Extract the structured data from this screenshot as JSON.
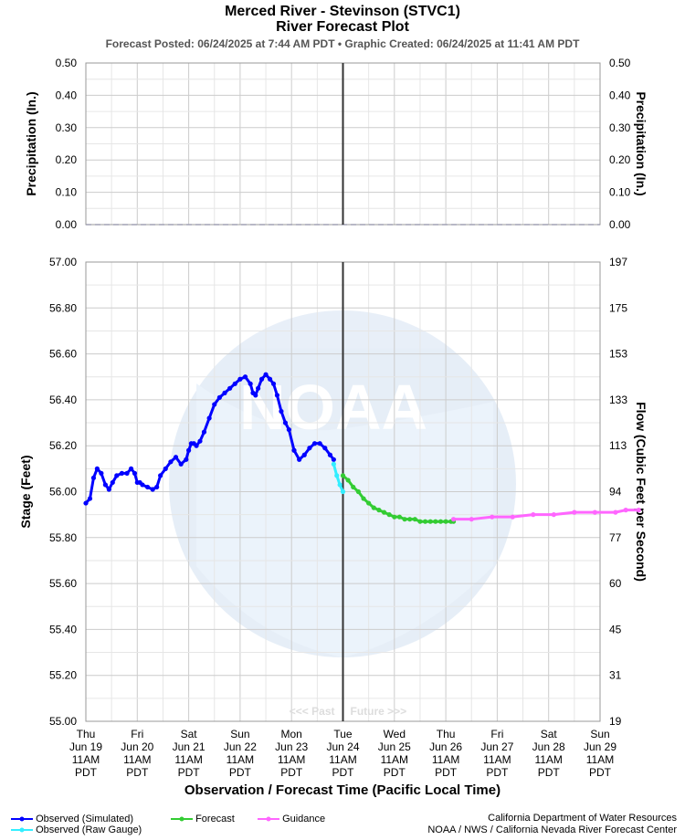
{
  "title": "Merced River - Stevinson (STVC1)",
  "subtitle": "River Forecast Plot",
  "posted": "Forecast Posted: 06/24/2025 at 7:44 AM PDT  •  Graphic Created: 06/24/2025 at 11:41 AM PDT",
  "x_axis_label": "Observation / Forecast Time (Pacific Local Time)",
  "past_label": "<<< Past",
  "future_label": "Future >>>",
  "credits": {
    "line1": "California Department of Water Resources",
    "line2": "NOAA / NWS / California Nevada River Forecast Center"
  },
  "legend": [
    {
      "label": "Observed (Simulated)",
      "color": "#0000ff"
    },
    {
      "label": "Observed (Raw Gauge)",
      "color": "#33eeff"
    },
    {
      "label": "Forecast",
      "color": "#33cc33"
    },
    {
      "label": "Guidance",
      "color": "#ff66ff"
    }
  ],
  "colors": {
    "observed": "#0000ff",
    "raw": "#33eeff",
    "forecast": "#33cc33",
    "guidance": "#ff66ff",
    "now_line": "#333333"
  },
  "chart_data": [
    {
      "type": "line",
      "ylabel": "Precipitation (In.)",
      "ylabel_right": "Precipitation (In.)",
      "ylim": [
        0,
        0.5
      ],
      "yticks": [
        "0.00",
        "0.10",
        "0.20",
        "0.30",
        "0.40",
        "0.50"
      ],
      "grid": true,
      "series": []
    },
    {
      "type": "line",
      "ylabel": "Stage (Feet)",
      "ylabel_right": "Flow (Cubic Feet per Second)",
      "ylim": [
        55.0,
        57.0
      ],
      "yticks": [
        "55.00",
        "55.20",
        "55.40",
        "55.60",
        "55.80",
        "56.00",
        "56.20",
        "56.40",
        "56.60",
        "56.80",
        "57.00"
      ],
      "yticks_right": [
        "19",
        "31",
        "45",
        "60",
        "77",
        "94",
        "113",
        "133",
        "153",
        "175",
        "197"
      ],
      "grid": true,
      "x_ticks": [
        {
          "day": "Thu",
          "date": "Jun 19",
          "time": "11AM",
          "tz": "PDT"
        },
        {
          "day": "Fri",
          "date": "Jun 20",
          "time": "11AM",
          "tz": "PDT"
        },
        {
          "day": "Sat",
          "date": "Jun 21",
          "time": "11AM",
          "tz": "PDT"
        },
        {
          "day": "Sun",
          "date": "Jun 22",
          "time": "11AM",
          "tz": "PDT"
        },
        {
          "day": "Mon",
          "date": "Jun 23",
          "time": "11AM",
          "tz": "PDT"
        },
        {
          "day": "Tue",
          "date": "Jun 24",
          "time": "11AM",
          "tz": "PDT"
        },
        {
          "day": "Wed",
          "date": "Jun 25",
          "time": "11AM",
          "tz": "PDT"
        },
        {
          "day": "Thu",
          "date": "Jun 26",
          "time": "11AM",
          "tz": "PDT"
        },
        {
          "day": "Fri",
          "date": "Jun 27",
          "time": "11AM",
          "tz": "PDT"
        },
        {
          "day": "Sat",
          "date": "Jun 28",
          "time": "11AM",
          "tz": "PDT"
        },
        {
          "day": "Sun",
          "date": "Jun 29",
          "time": "11AM",
          "tz": "PDT"
        }
      ],
      "now_x": 5,
      "series": [
        {
          "name": "Observed (Simulated)",
          "color": "#0000ff",
          "x": [
            0,
            0.08,
            0.15,
            0.22,
            0.3,
            0.38,
            0.45,
            0.52,
            0.6,
            0.7,
            0.8,
            0.88,
            0.95,
            1.0,
            1.05,
            1.1,
            1.2,
            1.3,
            1.38,
            1.45,
            1.55,
            1.65,
            1.75,
            1.85,
            1.95,
            2.0,
            2.05,
            2.1,
            2.15,
            2.22,
            2.3,
            2.4,
            2.5,
            2.6,
            2.7,
            2.8,
            2.9,
            3.0,
            3.1,
            3.2,
            3.25,
            3.3,
            3.35,
            3.42,
            3.5,
            3.58,
            3.65,
            3.72,
            3.8,
            3.88,
            3.95,
            4.05,
            4.15,
            4.25,
            4.35,
            4.45,
            4.55,
            4.65,
            4.75,
            4.82
          ],
          "y": [
            55.95,
            55.97,
            56.06,
            56.1,
            56.08,
            56.03,
            56.01,
            56.04,
            56.07,
            56.08,
            56.08,
            56.1,
            56.08,
            56.04,
            56.04,
            56.03,
            56.02,
            56.01,
            56.02,
            56.07,
            56.1,
            56.13,
            56.15,
            56.12,
            56.14,
            56.18,
            56.21,
            56.21,
            56.2,
            56.22,
            56.26,
            56.32,
            56.38,
            56.41,
            56.43,
            56.45,
            56.47,
            56.49,
            56.5,
            56.47,
            56.43,
            56.42,
            56.45,
            56.49,
            56.51,
            56.49,
            56.47,
            56.42,
            56.35,
            56.3,
            56.27,
            56.18,
            56.14,
            56.16,
            56.19,
            56.21,
            56.21,
            56.19,
            56.16,
            56.14
          ]
        },
        {
          "name": "Observed (Raw Gauge)",
          "color": "#33eeff",
          "x": [
            4.82,
            4.88,
            4.94,
            5.0
          ],
          "y": [
            56.12,
            56.07,
            56.03,
            56.0
          ]
        },
        {
          "name": "Forecast",
          "color": "#33cc33",
          "x": [
            5.0,
            5.1,
            5.2,
            5.3,
            5.4,
            5.5,
            5.6,
            5.7,
            5.8,
            5.9,
            6.0,
            6.1,
            6.2,
            6.3,
            6.4,
            6.5,
            6.6,
            6.7,
            6.8,
            6.9,
            7.0,
            7.1,
            7.15
          ],
          "y": [
            56.07,
            56.05,
            56.02,
            56.0,
            55.97,
            55.95,
            55.93,
            55.92,
            55.91,
            55.9,
            55.89,
            55.89,
            55.88,
            55.88,
            55.88,
            55.87,
            55.87,
            55.87,
            55.87,
            55.87,
            55.87,
            55.87,
            55.87
          ]
        },
        {
          "name": "Guidance",
          "color": "#ff66ff",
          "x": [
            7.15,
            7.5,
            7.9,
            8.3,
            8.7,
            9.1,
            9.5,
            9.9,
            10.3,
            10.5,
            10.75
          ],
          "y": [
            55.88,
            55.88,
            55.89,
            55.89,
            55.9,
            55.9,
            55.91,
            55.91,
            55.91,
            55.92,
            55.92
          ]
        }
      ]
    }
  ]
}
